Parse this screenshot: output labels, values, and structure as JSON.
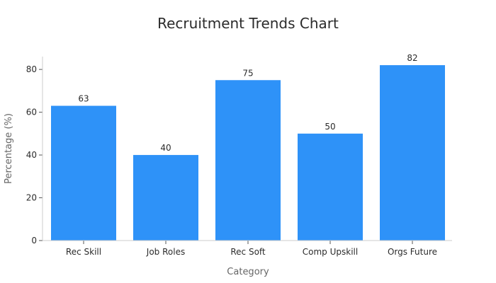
{
  "chart_data": {
    "type": "bar",
    "title": "Recruitment Trends Chart",
    "xlabel": "Category",
    "ylabel": "Percentage (%)",
    "categories": [
      "Rec Skill",
      "Job Roles",
      "Rec Soft",
      "Comp Upskill",
      "Orgs Future"
    ],
    "values": [
      63,
      40,
      75,
      50,
      82
    ],
    "ylim": [
      0,
      86
    ],
    "yticks": [
      0,
      20,
      40,
      60,
      80
    ],
    "bar_color": "#2e92f8",
    "grid": false,
    "legend": "none"
  }
}
